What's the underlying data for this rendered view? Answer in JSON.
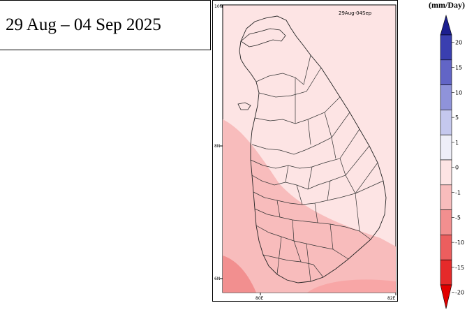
{
  "date_range": "29 Aug –  04 Sep 2025",
  "map": {
    "inset_label": "29Aug-04Sep",
    "lat_labels": [
      "10N",
      "8N",
      "6N"
    ],
    "lon_labels": [
      "80E",
      "82E"
    ]
  },
  "colorbar": {
    "unit": "(mm/Day)",
    "ticks": [
      "20",
      "15",
      "10",
      "5",
      "1",
      "0",
      "-1",
      "-5",
      "-10",
      "-15",
      "-20"
    ],
    "colors": [
      "#1c1f8f",
      "#3a3fb0",
      "#6265c6",
      "#8f93da",
      "#c5c8ee",
      "#eeeef8",
      "#fde4e4",
      "#f8bcbc",
      "#f28f8f",
      "#ec5e5e",
      "#e52a2a",
      "#e10000"
    ]
  },
  "legend_colors": {
    "anomaly_0_to_-1": "#fde4e4",
    "anomaly_-1_to_-5": "#f8bcbc",
    "anomaly_-5_to_-10": "#f28f8f"
  }
}
